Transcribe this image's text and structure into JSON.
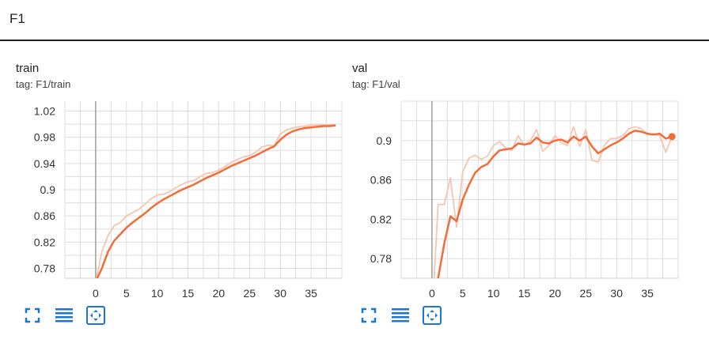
{
  "section": {
    "title": "F1"
  },
  "cards": [
    {
      "title": "train",
      "tag": "tag: F1/train",
      "chart_data": {
        "type": "line",
        "title": "",
        "xlabel": "",
        "ylabel": "",
        "xlim": [
          -5,
          40
        ],
        "ylim": [
          0.765,
          1.035
        ],
        "xticks": [
          0,
          5,
          10,
          15,
          20,
          25,
          30,
          35
        ],
        "yticks": [
          0.78,
          0.82,
          0.86,
          0.9,
          0.94,
          0.98,
          1.02
        ],
        "ytick_labels": [
          "0.78",
          "0.82",
          "0.86",
          "0.9",
          "0.94",
          "0.98",
          "1.02"
        ],
        "grid": true,
        "series": [
          {
            "role": "raw",
            "color": "#f5c5b0",
            "x": [
              0,
              1,
              2,
              3,
              4,
              5,
              6,
              7,
              8,
              9,
              10,
              11,
              12,
              13,
              14,
              15,
              16,
              17,
              18,
              19,
              20,
              21,
              22,
              23,
              24,
              25,
              26,
              27,
              28,
              29,
              30,
              31,
              32,
              33,
              34,
              35,
              36,
              37,
              38,
              39
            ],
            "y": [
              0.76,
              0.805,
              0.83,
              0.845,
              0.85,
              0.86,
              0.865,
              0.87,
              0.878,
              0.886,
              0.892,
              0.893,
              0.897,
              0.903,
              0.908,
              0.912,
              0.914,
              0.92,
              0.925,
              0.926,
              0.93,
              0.935,
              0.942,
              0.946,
              0.95,
              0.952,
              0.957,
              0.965,
              0.968,
              0.967,
              0.985,
              0.991,
              0.994,
              0.996,
              0.997,
              0.998,
              0.999,
              0.999,
              0.999,
              0.999
            ]
          },
          {
            "role": "smoothed",
            "color": "#f36c37",
            "x": [
              0,
              1,
              2,
              3,
              4,
              5,
              6,
              7,
              8,
              9,
              10,
              11,
              12,
              13,
              14,
              15,
              16,
              17,
              18,
              19,
              20,
              21,
              22,
              23,
              24,
              25,
              26,
              27,
              28,
              29,
              30,
              31,
              32,
              33,
              34,
              35,
              36,
              37,
              38,
              39
            ],
            "y": [
              0.76,
              0.78,
              0.805,
              0.822,
              0.832,
              0.842,
              0.85,
              0.857,
              0.864,
              0.872,
              0.879,
              0.885,
              0.89,
              0.895,
              0.9,
              0.904,
              0.908,
              0.913,
              0.918,
              0.922,
              0.926,
              0.931,
              0.936,
              0.94,
              0.944,
              0.948,
              0.952,
              0.957,
              0.962,
              0.966,
              0.976,
              0.984,
              0.989,
              0.992,
              0.994,
              0.995,
              0.996,
              0.997,
              0.997,
              0.998
            ]
          }
        ]
      }
    },
    {
      "title": "val",
      "tag": "tag: F1/val",
      "chart_data": {
        "type": "line",
        "title": "",
        "xlabel": "",
        "ylabel": "",
        "xlim": [
          -5,
          40
        ],
        "ylim": [
          0.76,
          0.94
        ],
        "xticks": [
          0,
          5,
          10,
          15,
          20,
          25,
          30,
          35
        ],
        "yticks": [
          0.78,
          0.82,
          0.86,
          0.9
        ],
        "ytick_labels": [
          "0.78",
          "0.82",
          "0.86",
          "0.9"
        ],
        "grid": true,
        "series": [
          {
            "role": "raw",
            "color": "#f5c5b0",
            "x": [
              0,
              1,
              2,
              3,
              4,
              5,
              6,
              7,
              8,
              9,
              10,
              11,
              12,
              13,
              14,
              15,
              16,
              17,
              18,
              19,
              20,
              21,
              22,
              23,
              24,
              25,
              26,
              27,
              28,
              29,
              30,
              31,
              32,
              33,
              34,
              35,
              36,
              37,
              38,
              39
            ],
            "y": [
              0.72,
              0.835,
              0.835,
              0.862,
              0.812,
              0.868,
              0.882,
              0.885,
              0.881,
              0.884,
              0.895,
              0.899,
              0.892,
              0.89,
              0.905,
              0.895,
              0.9,
              0.911,
              0.889,
              0.895,
              0.905,
              0.898,
              0.895,
              0.914,
              0.894,
              0.911,
              0.88,
              0.878,
              0.895,
              0.902,
              0.902,
              0.905,
              0.912,
              0.914,
              0.912,
              0.906,
              0.907,
              0.905,
              0.888,
              0.904
            ]
          },
          {
            "role": "smoothed",
            "color": "#f36c37",
            "x": [
              0,
              1,
              2,
              3,
              4,
              5,
              6,
              7,
              8,
              9,
              10,
              11,
              12,
              13,
              14,
              15,
              16,
              17,
              18,
              19,
              20,
              21,
              22,
              23,
              24,
              25,
              26,
              27,
              28,
              29,
              30,
              31,
              32,
              33,
              34,
              35,
              36,
              37,
              38,
              39
            ],
            "y": [
              0.72,
              0.76,
              0.795,
              0.823,
              0.818,
              0.84,
              0.855,
              0.867,
              0.873,
              0.876,
              0.884,
              0.89,
              0.891,
              0.892,
              0.897,
              0.896,
              0.897,
              0.903,
              0.898,
              0.897,
              0.9,
              0.901,
              0.898,
              0.904,
              0.9,
              0.904,
              0.894,
              0.887,
              0.891,
              0.895,
              0.898,
              0.902,
              0.907,
              0.91,
              0.909,
              0.907,
              0.906,
              0.907,
              0.902,
              0.904
            ]
          }
        ]
      }
    }
  ],
  "actions": [
    {
      "icon": "fullscreen-icon"
    },
    {
      "icon": "toggle-log-scale-icon"
    },
    {
      "icon": "fit-domain-icon"
    }
  ],
  "colors": {
    "accent": "#1976d2",
    "raw_line": "#f5c5b0",
    "smoothed_line": "#f36c37",
    "grid": "#dddddd",
    "zero_line": "#9e9e9e"
  }
}
